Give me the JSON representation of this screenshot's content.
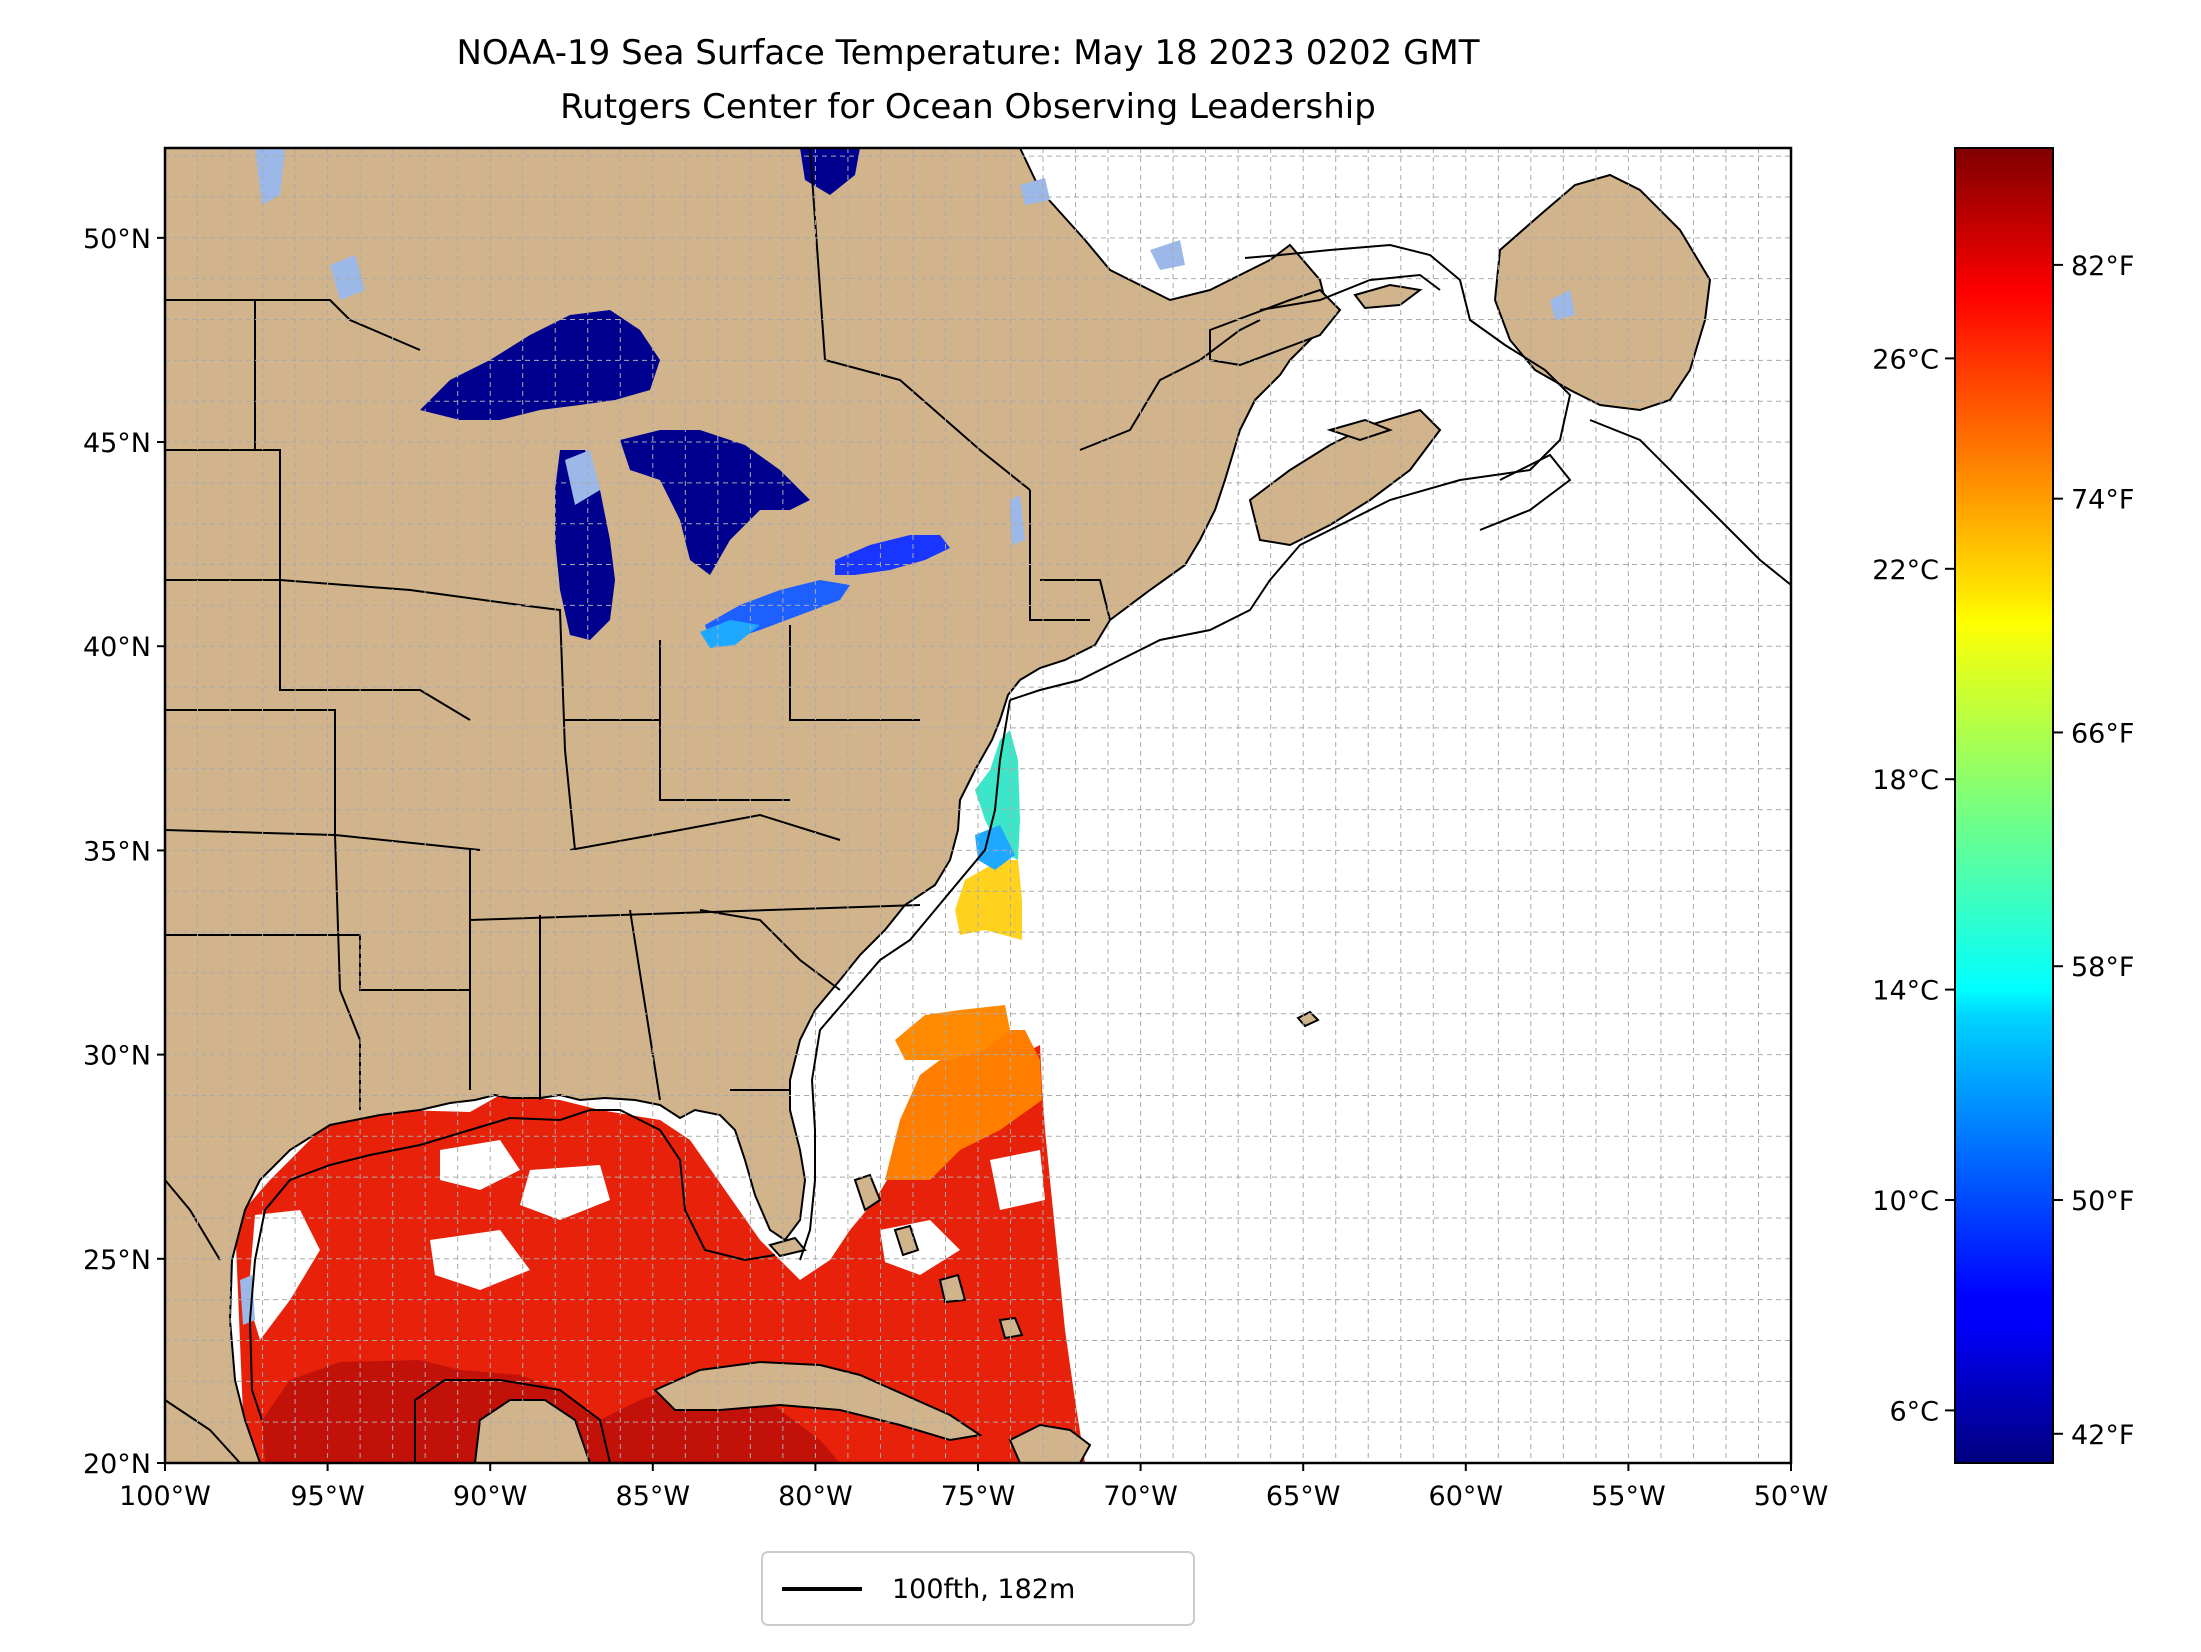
{
  "title_line1": "NOAA-19 Sea Surface Temperature: May 18 2023 0202 GMT",
  "title_line2": "Rutgers Center for Ocean Observing Leadership",
  "map": {
    "lon_range": [
      -100,
      -50
    ],
    "lat_range": [
      20,
      52.2
    ],
    "lat_ticks": [
      {
        "value": 50,
        "label": "50°N"
      },
      {
        "value": 45,
        "label": "45°N"
      },
      {
        "value": 40,
        "label": "40°N"
      },
      {
        "value": 35,
        "label": "35°N"
      },
      {
        "value": 30,
        "label": "30°N"
      },
      {
        "value": 25,
        "label": "25°N"
      },
      {
        "value": 20,
        "label": "20°N"
      }
    ],
    "lon_ticks": [
      {
        "value": -100,
        "label": "100°W"
      },
      {
        "value": -95,
        "label": "95°W"
      },
      {
        "value": -90,
        "label": "90°W"
      },
      {
        "value": -85,
        "label": "85°W"
      },
      {
        "value": -80,
        "label": "80°W"
      },
      {
        "value": -75,
        "label": "75°W"
      },
      {
        "value": -70,
        "label": "70°W"
      },
      {
        "value": -65,
        "label": "65°W"
      },
      {
        "value": -60,
        "label": "60°W"
      },
      {
        "value": -55,
        "label": "55°W"
      },
      {
        "value": -50,
        "label": "50°W"
      }
    ],
    "gridlines": true,
    "colors": {
      "land": "#d2b48c",
      "ocean": "#ffffff",
      "inland_water": "#9bb8e8",
      "border": "#000000",
      "gridline": "#aaaaaa"
    }
  },
  "colorbar": {
    "colormap": "jet",
    "celsius_range": [
      5.0,
      30.0
    ],
    "celsius_ticks": [
      {
        "value": 6,
        "label": "6°C"
      },
      {
        "value": 10,
        "label": "10°C"
      },
      {
        "value": 14,
        "label": "14°C"
      },
      {
        "value": 18,
        "label": "18°C"
      },
      {
        "value": 22,
        "label": "22°C"
      },
      {
        "value": 26,
        "label": "26°C"
      }
    ],
    "fahrenheit_ticks": [
      {
        "value": 42,
        "label": "42°F"
      },
      {
        "value": 50,
        "label": "50°F"
      },
      {
        "value": 58,
        "label": "58°F"
      },
      {
        "value": 66,
        "label": "66°F"
      },
      {
        "value": 74,
        "label": "74°F"
      },
      {
        "value": 82,
        "label": "82°F"
      }
    ]
  },
  "legend": {
    "label": "100fth, 182m",
    "line_color": "#000000",
    "placement": "bottom-center"
  }
}
